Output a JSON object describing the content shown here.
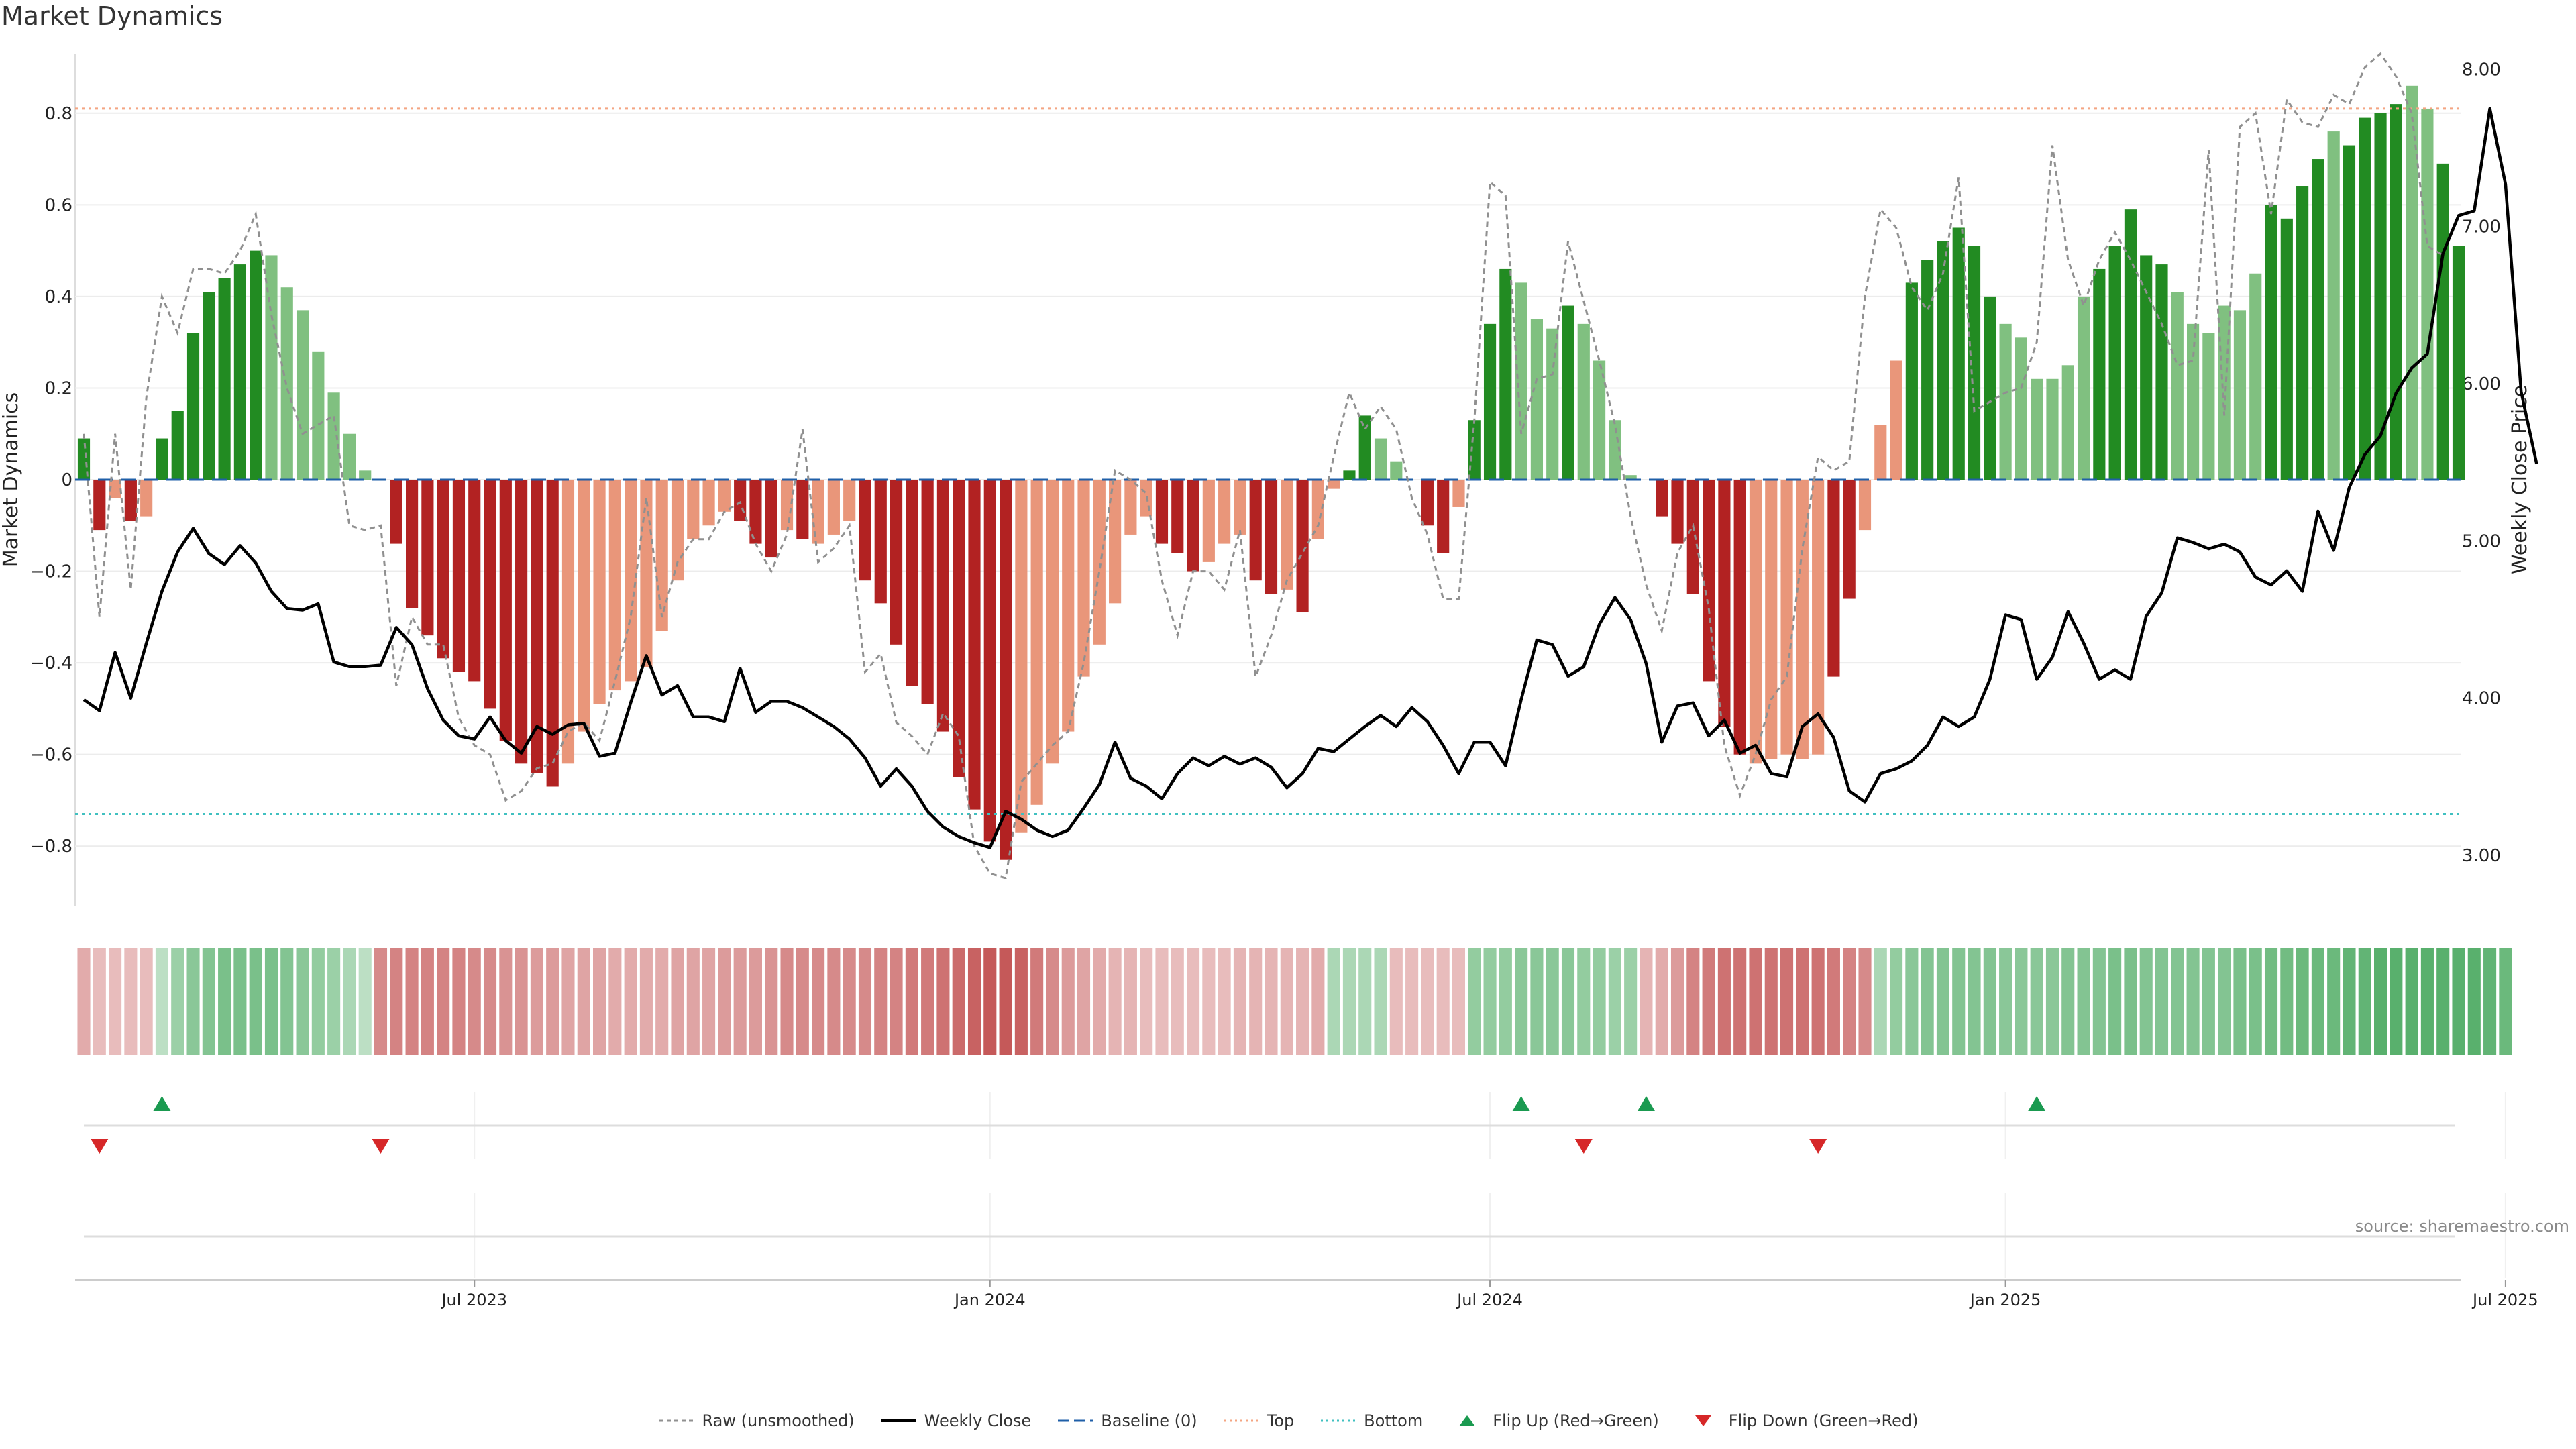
{
  "title": "Market Dynamics",
  "source": "source: sharemaestro.com",
  "colors": {
    "green_dark": "#228b22",
    "green_light": "#80c080",
    "red_dark": "#b22222",
    "red_light": "#e9967a",
    "raw": "#909090",
    "close": "#000000",
    "baseline": "#1f5fa8",
    "top": "#f4a582",
    "bottom": "#40c0c0",
    "flip_up": "#1a9a50",
    "flip_down": "#d62728"
  },
  "legend": [
    {
      "key": "raw",
      "label": "Raw (unsmoothed)"
    },
    {
      "key": "close",
      "label": "Weekly Close"
    },
    {
      "key": "baseline",
      "label": "Baseline (0)"
    },
    {
      "key": "top",
      "label": "Top"
    },
    {
      "key": "bottom",
      "label": "Bottom"
    },
    {
      "key": "flip_up",
      "label": "Flip Up (Red→Green)"
    },
    {
      "key": "flip_down",
      "label": "Flip Down (Green→Red)"
    }
  ],
  "chart_data": {
    "type": "bar",
    "ylabel": "Market Dynamics",
    "y2label": "Weekly Close Price",
    "ylim": [
      -0.93,
      0.93
    ],
    "y2lim": [
      2.68,
      8.1
    ],
    "yticks": [
      "0.8",
      "0.6",
      "0.4",
      "0.2",
      "0",
      "−0.2",
      "−0.4",
      "−0.6",
      "−0.8"
    ],
    "ytick_values": [
      0.8,
      0.6,
      0.4,
      0.2,
      0,
      -0.2,
      -0.4,
      -0.6,
      -0.8
    ],
    "y2ticks": [
      "8.00",
      "7.00",
      "6.00",
      "5.00",
      "4.00",
      "3.00"
    ],
    "y2tick_values": [
      8,
      7,
      6,
      5,
      4,
      3
    ],
    "xticks": [
      {
        "label": "Jul 2023",
        "index": 25
      },
      {
        "label": "Jan 2024",
        "index": 58
      },
      {
        "label": "Jul 2024",
        "index": 90
      },
      {
        "label": "Jan 2025",
        "index": 123
      },
      {
        "label": "Jul 2025",
        "index": 155
      }
    ],
    "reference_lines": {
      "top": 0.81,
      "bottom": -0.73,
      "baseline": 0
    },
    "grid": true,
    "series": [
      {
        "name": "Market Dynamics",
        "values": [
          0.09,
          -0.11,
          -0.04,
          -0.09,
          -0.08,
          0.09,
          0.15,
          0.32,
          0.41,
          0.44,
          0.47,
          0.5,
          0.49,
          0.42,
          0.37,
          0.28,
          0.19,
          0.1,
          0.02,
          0,
          -0.14,
          -0.28,
          -0.34,
          -0.39,
          -0.42,
          -0.44,
          -0.5,
          -0.57,
          -0.62,
          -0.64,
          -0.67,
          -0.62,
          -0.55,
          -0.49,
          -0.46,
          -0.44,
          -0.41,
          -0.33,
          -0.22,
          -0.13,
          -0.1,
          -0.07,
          -0.09,
          -0.14,
          -0.17,
          -0.11,
          -0.13,
          -0.14,
          -0.12,
          -0.09,
          -0.22,
          -0.27,
          -0.36,
          -0.45,
          -0.49,
          -0.55,
          -0.65,
          -0.72,
          -0.79,
          -0.83,
          -0.77,
          -0.71,
          -0.62,
          -0.55,
          -0.43,
          -0.36,
          -0.27,
          -0.12,
          -0.08,
          -0.14,
          -0.16,
          -0.2,
          -0.18,
          -0.14,
          -0.12,
          -0.22,
          -0.25,
          -0.24,
          -0.29,
          -0.13,
          -0.02,
          0.02,
          0.14,
          0.09,
          0.04,
          0,
          -0.1,
          -0.16,
          -0.06,
          0.13,
          0.34,
          0.46,
          0.43,
          0.35,
          0.33,
          0.38,
          0.34,
          0.26,
          0.13,
          0.01,
          0,
          -0.08,
          -0.14,
          -0.25,
          -0.44,
          -0.54,
          -0.6,
          -0.62,
          -0.61,
          -0.6,
          -0.61,
          -0.6,
          -0.43,
          -0.26,
          -0.11,
          0.12,
          0.26,
          0.43,
          0.48,
          0.52,
          0.55,
          0.51,
          0.4,
          0.34,
          0.31,
          0.22,
          0.22,
          0.25,
          0.4,
          0.46,
          0.51,
          0.59,
          0.49,
          0.47,
          0.41,
          0.34,
          0.32,
          0.38,
          0.37,
          0.45,
          0.6,
          0.57,
          0.64,
          0.7,
          0.76,
          0.73,
          0.79,
          0.8,
          0.82,
          0.86,
          0.81,
          0.69,
          0.51
        ],
        "colors": [
          "G",
          "R",
          "r",
          "R",
          "r",
          "G",
          "G",
          "G",
          "G",
          "G",
          "G",
          "G",
          "g",
          "g",
          "g",
          "g",
          "g",
          "g",
          "g",
          "R",
          "R",
          "R",
          "R",
          "R",
          "R",
          "R",
          "R",
          "R",
          "R",
          "R",
          "R",
          "r",
          "r",
          "r",
          "r",
          "r",
          "r",
          "r",
          "r",
          "r",
          "r",
          "r",
          "R",
          "R",
          "R",
          "r",
          "R",
          "r",
          "r",
          "r",
          "R",
          "R",
          "R",
          "R",
          "R",
          "R",
          "R",
          "R",
          "R",
          "R",
          "r",
          "r",
          "r",
          "r",
          "r",
          "r",
          "r",
          "r",
          "r",
          "R",
          "R",
          "R",
          "r",
          "r",
          "r",
          "R",
          "R",
          "r",
          "R",
          "r",
          "r",
          "G",
          "G",
          "g",
          "g",
          "R",
          "R",
          "R",
          "r",
          "G",
          "G",
          "G",
          "g",
          "g",
          "g",
          "G",
          "g",
          "g",
          "g",
          "g",
          "R",
          "R",
          "R",
          "R",
          "R",
          "R",
          "R",
          "r",
          "r",
          "r",
          "r",
          "r",
          "R",
          "R",
          "r",
          "r",
          "r",
          "G",
          "G",
          "G",
          "G",
          "G",
          "G",
          "g",
          "g",
          "g",
          "g",
          "g",
          "g",
          "G",
          "G",
          "G",
          "G",
          "G",
          "g",
          "g",
          "g",
          "g",
          "g",
          "g",
          "G",
          "G",
          "G",
          "G",
          "g",
          "G",
          "G",
          "G",
          "G",
          "g",
          "g",
          "G",
          "G",
          "g",
          "g"
        ]
      },
      {
        "name": "Raw (unsmoothed)",
        "values": [
          0.1,
          -0.3,
          0.1,
          -0.24,
          0.18,
          0.4,
          0.32,
          0.46,
          0.46,
          0.45,
          0.5,
          0.58,
          0.36,
          0.2,
          0.1,
          0.12,
          0.14,
          -0.1,
          -0.11,
          -0.1,
          -0.45,
          -0.3,
          -0.36,
          -0.36,
          -0.52,
          -0.58,
          -0.6,
          -0.7,
          -0.68,
          -0.63,
          -0.62,
          -0.55,
          -0.53,
          -0.57,
          -0.44,
          -0.3,
          -0.04,
          -0.3,
          -0.18,
          -0.13,
          -0.13,
          -0.07,
          -0.05,
          -0.14,
          -0.2,
          -0.12,
          0.11,
          -0.18,
          -0.15,
          -0.1,
          -0.42,
          -0.38,
          -0.53,
          -0.56,
          -0.6,
          -0.51,
          -0.56,
          -0.8,
          -0.86,
          -0.87,
          -0.66,
          -0.62,
          -0.58,
          -0.55,
          -0.4,
          -0.2,
          0.02,
          0,
          -0.03,
          -0.22,
          -0.34,
          -0.2,
          -0.2,
          -0.24,
          -0.11,
          -0.43,
          -0.34,
          -0.22,
          -0.16,
          -0.1,
          0.05,
          0.19,
          0.11,
          0.16,
          0.11,
          -0.04,
          -0.12,
          -0.26,
          -0.26,
          0.13,
          0.65,
          0.62,
          0.1,
          0.22,
          0.23,
          0.52,
          0.39,
          0.26,
          0.12,
          -0.08,
          -0.23,
          -0.33,
          -0.16,
          -0.1,
          -0.28,
          -0.58,
          -0.69,
          -0.6,
          -0.48,
          -0.43,
          -0.15,
          0.05,
          0.02,
          0.04,
          0.4,
          0.59,
          0.55,
          0.42,
          0.37,
          0.45,
          0.66,
          0.15,
          0.17,
          0.19,
          0.2,
          0.3,
          0.73,
          0.48,
          0.38,
          0.48,
          0.54,
          0.48,
          0.41,
          0.34,
          0.25,
          0.26,
          0.72,
          0.14,
          0.77,
          0.8,
          0.58,
          0.83,
          0.78,
          0.77,
          0.84,
          0.82,
          0.9,
          0.93,
          0.88,
          0.8,
          0.51,
          0.49
        ]
      },
      {
        "name": "Weekly Close",
        "values": [
          3.99,
          3.92,
          4.29,
          4.0,
          4.35,
          4.68,
          4.93,
          5.08,
          4.92,
          4.85,
          4.97,
          4.86,
          4.68,
          4.57,
          4.56,
          4.6,
          4.23,
          4.2,
          4.2,
          4.21,
          4.45,
          4.34,
          4.06,
          3.86,
          3.76,
          3.74,
          3.88,
          3.73,
          3.65,
          3.82,
          3.77,
          3.83,
          3.84,
          3.63,
          3.65,
          3.97,
          4.27,
          4.02,
          4.08,
          3.88,
          3.88,
          3.85,
          4.19,
          3.91,
          3.98,
          3.98,
          3.94,
          3.88,
          3.82,
          3.74,
          3.62,
          3.44,
          3.55,
          3.44,
          3.28,
          3.18,
          3.12,
          3.08,
          3.05,
          3.28,
          3.23,
          3.16,
          3.12,
          3.16,
          3.3,
          3.45,
          3.72,
          3.49,
          3.44,
          3.36,
          3.52,
          3.62,
          3.57,
          3.63,
          3.58,
          3.62,
          3.56,
          3.43,
          3.52,
          3.68,
          3.66,
          3.74,
          3.82,
          3.89,
          3.82,
          3.94,
          3.85,
          3.7,
          3.52,
          3.72,
          3.72,
          3.57,
          3.99,
          4.37,
          4.34,
          4.14,
          4.2,
          4.47,
          4.64,
          4.5,
          4.22,
          3.72,
          3.95,
          3.97,
          3.76,
          3.86,
          3.65,
          3.7,
          3.52,
          3.5,
          3.82,
          3.9,
          3.75,
          3.41,
          3.34,
          3.52,
          3.55,
          3.6,
          3.7,
          3.88,
          3.82,
          3.88,
          4.12,
          4.53,
          4.5,
          4.12,
          4.26,
          4.55,
          4.35,
          4.12,
          4.18,
          4.12,
          4.52,
          4.67,
          5.02,
          4.99,
          4.95,
          4.98,
          4.93,
          4.77,
          4.72,
          4.81,
          4.68,
          5.19,
          4.94,
          5.34,
          5.55,
          5.67,
          5.94,
          6.1,
          6.19,
          6.83,
          7.07,
          7.1,
          7.75,
          7.27,
          5.95,
          5.49
        ]
      }
    ],
    "heatmap": {
      "type": "heatmap",
      "description_levels": "signed strength per week, sign gives hue",
      "values": [
        -0.3,
        -0.2,
        -0.2,
        -0.2,
        -0.2,
        0.2,
        0.4,
        0.5,
        0.55,
        0.6,
        0.6,
        0.6,
        0.6,
        0.55,
        0.5,
        0.45,
        0.4,
        0.3,
        0.2,
        -0.5,
        -0.55,
        -0.55,
        -0.55,
        -0.55,
        -0.55,
        -0.5,
        -0.5,
        -0.45,
        -0.45,
        -0.4,
        -0.4,
        -0.35,
        -0.35,
        -0.35,
        -0.3,
        -0.3,
        -0.3,
        -0.3,
        -0.35,
        -0.35,
        -0.35,
        -0.4,
        -0.4,
        -0.4,
        -0.45,
        -0.5,
        -0.5,
        -0.5,
        -0.5,
        -0.5,
        -0.5,
        -0.55,
        -0.55,
        -0.6,
        -0.6,
        -0.65,
        -0.7,
        -0.75,
        -0.8,
        -0.8,
        -0.75,
        -0.6,
        -0.5,
        -0.4,
        -0.35,
        -0.3,
        -0.25,
        -0.25,
        -0.2,
        -0.2,
        -0.2,
        -0.2,
        -0.2,
        -0.2,
        -0.25,
        -0.25,
        -0.25,
        -0.25,
        -0.25,
        -0.3,
        0.3,
        0.3,
        0.3,
        0.3,
        -0.2,
        -0.2,
        -0.2,
        -0.2,
        -0.2,
        0.45,
        0.45,
        0.45,
        0.5,
        0.5,
        0.5,
        0.5,
        0.45,
        0.45,
        0.4,
        0.4,
        -0.25,
        -0.3,
        -0.4,
        -0.55,
        -0.6,
        -0.65,
        -0.65,
        -0.65,
        -0.65,
        -0.65,
        -0.65,
        -0.65,
        -0.6,
        -0.55,
        -0.5,
        0.3,
        0.45,
        0.5,
        0.55,
        0.55,
        0.55,
        0.55,
        0.55,
        0.5,
        0.5,
        0.5,
        0.5,
        0.55,
        0.55,
        0.55,
        0.6,
        0.6,
        0.55,
        0.55,
        0.55,
        0.55,
        0.55,
        0.55,
        0.6,
        0.6,
        0.65,
        0.65,
        0.7,
        0.7,
        0.7,
        0.75,
        0.75,
        0.8,
        0.8,
        0.8,
        0.8,
        0.8,
        0.8,
        0.8,
        0.75,
        0.7
      ]
    },
    "flips": {
      "up": [
        5,
        92,
        100,
        125
      ],
      "down": [
        1,
        19,
        96,
        111
      ]
    }
  }
}
